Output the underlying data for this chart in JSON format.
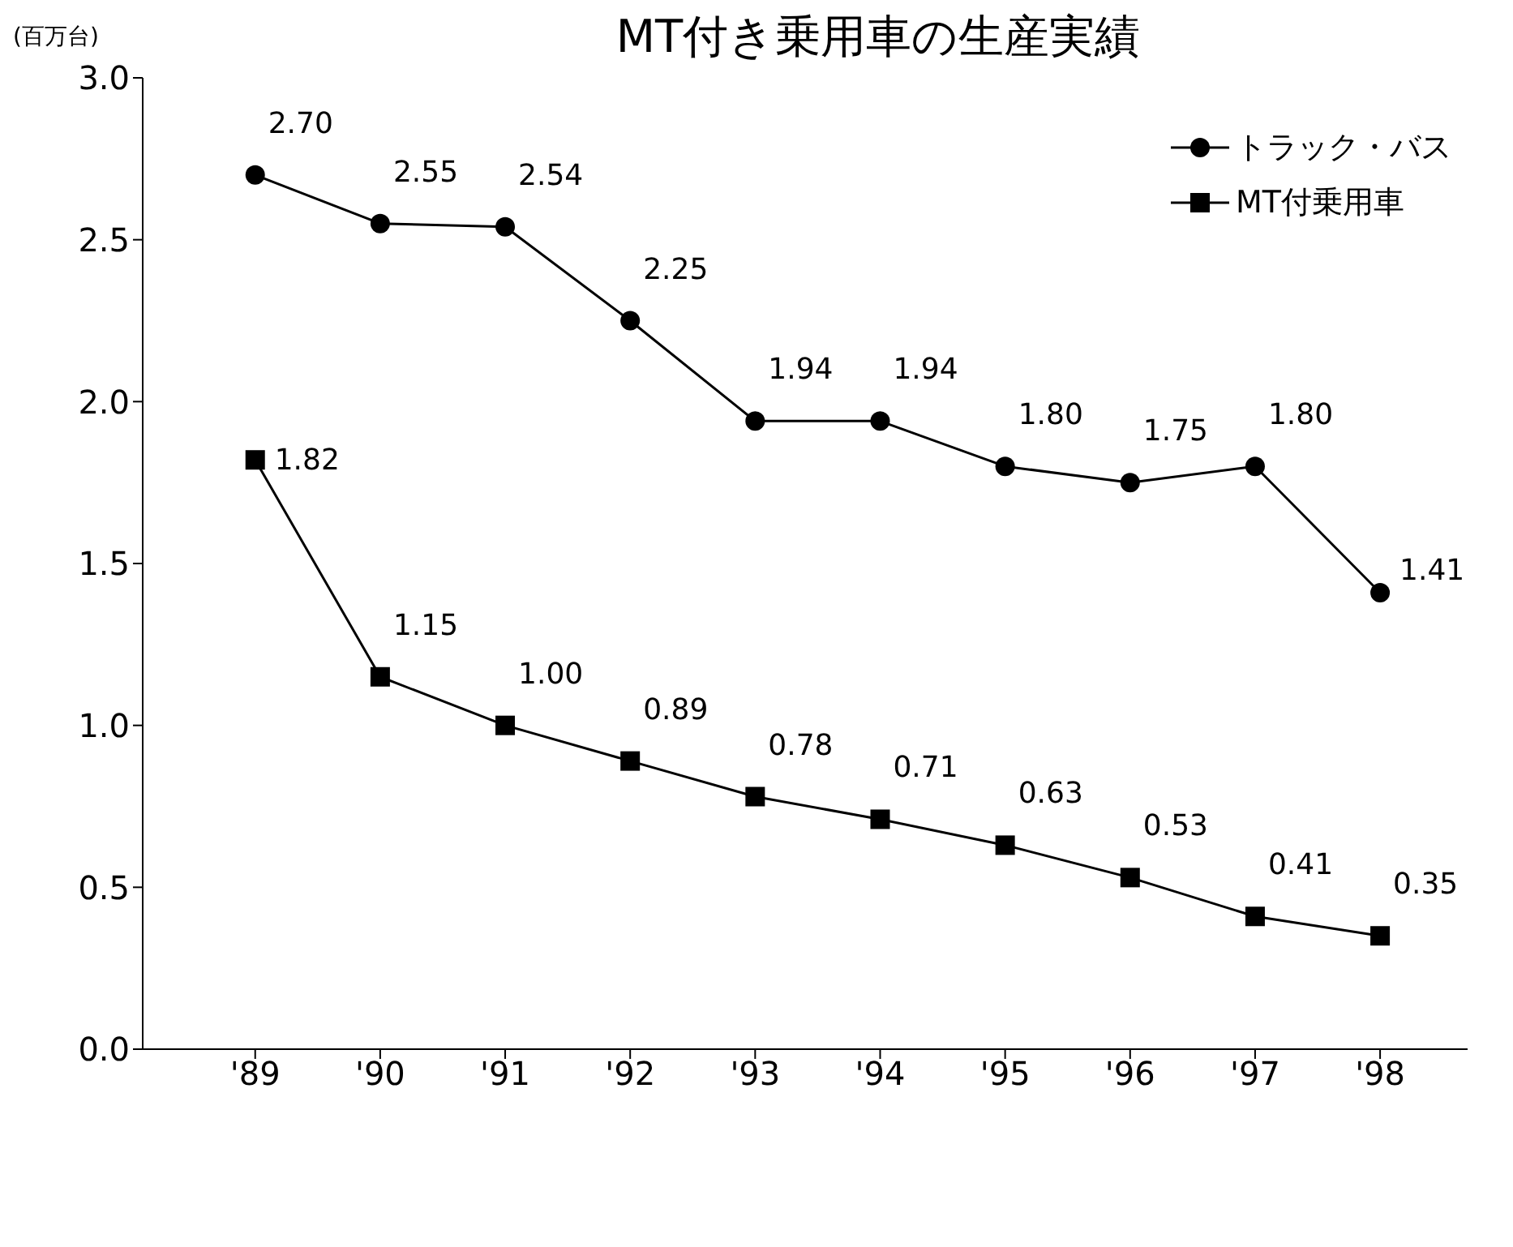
{
  "chart_data": {
    "type": "line",
    "title": "MT付き乗用車の生産実績",
    "ylabel": "(百万台)",
    "categories": [
      "'89",
      "'90",
      "'91",
      "'92",
      "'93",
      "'94",
      "'95",
      "'96",
      "'97",
      "'98"
    ],
    "series": [
      {
        "name": "トラック・バス",
        "color": "#000000",
        "marker": "circle",
        "values": [
          2.7,
          2.55,
          2.54,
          2.25,
          1.94,
          1.94,
          1.8,
          1.75,
          1.8,
          1.41
        ],
        "value_labels": [
          "2.70",
          "2.55",
          "2.54",
          "2.25",
          "1.94",
          "1.94",
          "1.80",
          "1.75",
          "1.80",
          "1.41"
        ]
      },
      {
        "name": "MT付乗用車",
        "color": "#000000",
        "marker": "square",
        "values": [
          1.82,
          1.15,
          1.0,
          0.89,
          0.78,
          0.71,
          0.63,
          0.53,
          0.41,
          0.35
        ],
        "value_labels": [
          "1.82",
          "1.15",
          "1.00",
          "0.89",
          "0.78",
          "0.71",
          "0.63",
          "0.53",
          "0.41",
          "0.35"
        ]
      }
    ],
    "ylim": [
      0,
      3
    ],
    "yticks": [
      {
        "value": 0,
        "label": "0.0"
      },
      {
        "value": 0.5,
        "label": "0.5"
      },
      {
        "value": 1,
        "label": "1.0"
      },
      {
        "value": 1.5,
        "label": "1.5"
      },
      {
        "value": 2,
        "label": "2.0"
      },
      {
        "value": 2.5,
        "label": "2.5"
      },
      {
        "value": 3,
        "label": "3.0"
      }
    ],
    "grid": false,
    "legend": "top right",
    "line_style": "solid"
  }
}
